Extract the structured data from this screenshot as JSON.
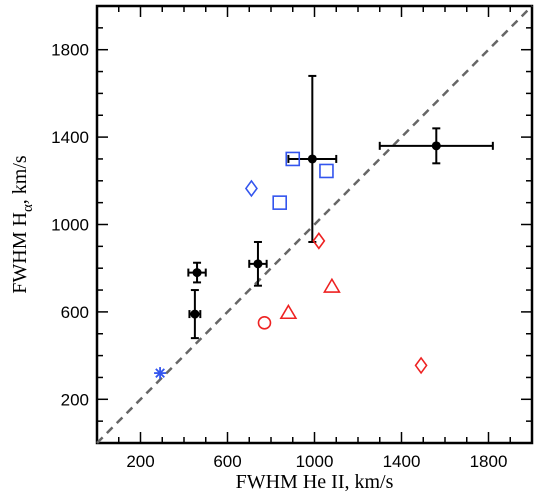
{
  "chart_data": {
    "type": "scatter",
    "title": "",
    "xlabel": "FWHM He II, km/s",
    "ylabel": {
      "prefix": "FWHM H",
      "subscript": "α",
      "suffix": ", km/s"
    },
    "xlim": [
      0,
      2000
    ],
    "ylim": [
      0,
      2000
    ],
    "xticks": [
      200,
      600,
      1000,
      1400,
      1800
    ],
    "yticks": [
      200,
      600,
      1000,
      1400,
      1800
    ],
    "xminor_step": 100,
    "yminor_step": 100,
    "grid": false,
    "legend": "none",
    "reference_line": {
      "style": "dashed",
      "color": "#666666",
      "slope": 1,
      "intercept": 0
    },
    "series": [
      {
        "marker": "filled-circle",
        "color": "#000000",
        "points": [
          {
            "x": 450,
            "y": 590,
            "xerr": 25,
            "yerr": 110
          },
          {
            "x": 460,
            "y": 780,
            "xerr": 40,
            "yerr": 45
          },
          {
            "x": 740,
            "y": 820,
            "xerr": 40,
            "yerr": 100
          },
          {
            "x": 990,
            "y": 1300,
            "xerr": 110,
            "yerr": 380
          },
          {
            "x": 1560,
            "y": 1360,
            "xerr": 260,
            "yerr": 80
          }
        ]
      },
      {
        "marker": "open-square",
        "color": "#3355ee",
        "points": [
          {
            "x": 900,
            "y": 1300
          },
          {
            "x": 1055,
            "y": 1245
          },
          {
            "x": 840,
            "y": 1100
          }
        ]
      },
      {
        "marker": "open-diamond",
        "color": "#3355ee",
        "points": [
          {
            "x": 710,
            "y": 1165
          }
        ]
      },
      {
        "marker": "asterisk",
        "color": "#3355ee",
        "points": [
          {
            "x": 290,
            "y": 320
          }
        ]
      },
      {
        "marker": "open-diamond",
        "color": "#ee2222",
        "points": [
          {
            "x": 1020,
            "y": 925
          },
          {
            "x": 1490,
            "y": 355
          }
        ]
      },
      {
        "marker": "open-triangle",
        "color": "#ee2222",
        "points": [
          {
            "x": 1080,
            "y": 715
          },
          {
            "x": 880,
            "y": 595
          }
        ]
      },
      {
        "marker": "open-circle",
        "color": "#ee2222",
        "points": [
          {
            "x": 770,
            "y": 550
          }
        ]
      }
    ]
  }
}
